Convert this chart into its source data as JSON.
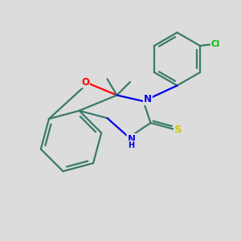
{
  "background_color": "#dcdcdc",
  "bond_color": "#3a7a6a",
  "atom_colors": {
    "O": "#ff0000",
    "N": "#0000ee",
    "S": "#cccc00",
    "Cl": "#00bb00",
    "C": "#3a7a6a"
  },
  "figsize": [
    3.0,
    3.0
  ],
  "dpi": 100,
  "lw": 1.6
}
